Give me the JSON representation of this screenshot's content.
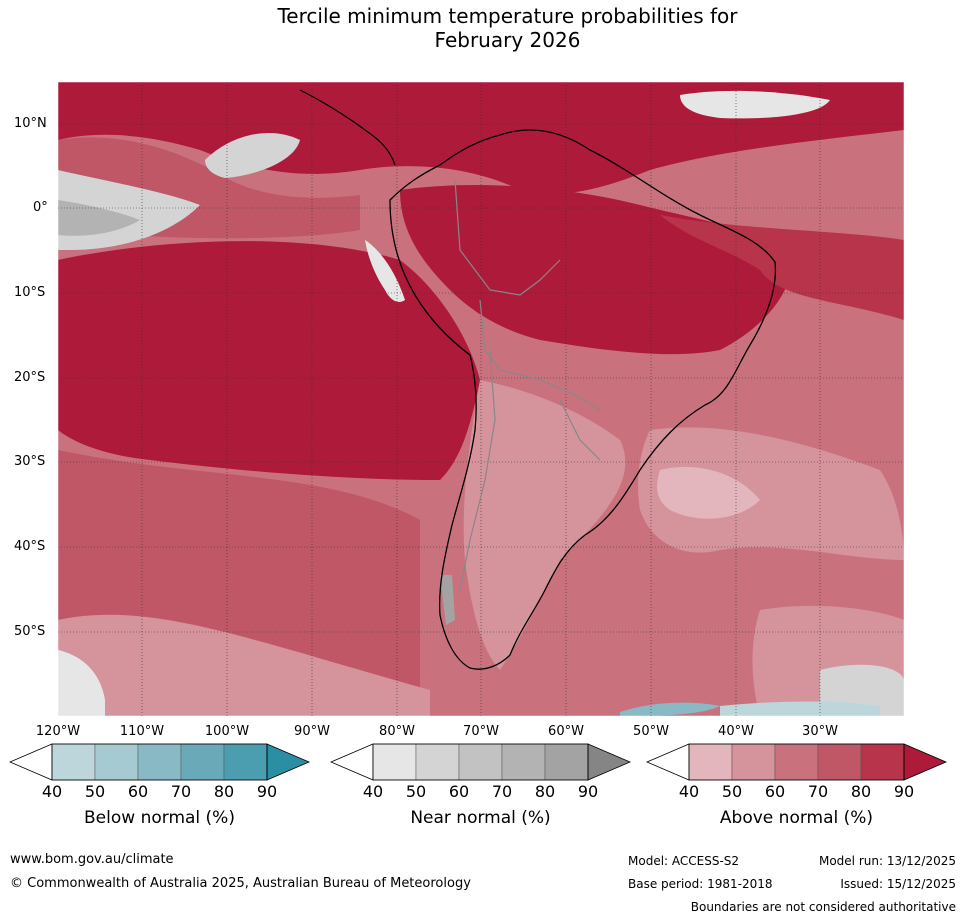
{
  "title_line1": "Tercile minimum temperature probabilities for",
  "title_line2": "February 2026",
  "lat_labels": [
    "10°N",
    "0°",
    "10°S",
    "20°S",
    "30°S",
    "40°S",
    "50°S"
  ],
  "lon_labels": [
    "120°W",
    "110°W",
    "100°W",
    "90°W",
    "80°W",
    "70°W",
    "60°W",
    "50°W",
    "40°W",
    "30°W"
  ],
  "colorbars": [
    {
      "title": "Below normal (%)",
      "ticks": [
        "40",
        "50",
        "60",
        "70",
        "80",
        "90"
      ],
      "colors": [
        "#ffffff",
        "#bdd6dc",
        "#a6cad2",
        "#89b9c5",
        "#6aaab8",
        "#4a9eb0",
        "#2b8fa4"
      ]
    },
    {
      "title": "Near normal (%)",
      "ticks": [
        "40",
        "50",
        "60",
        "70",
        "80",
        "90"
      ],
      "colors": [
        "#ffffff",
        "#e6e6e6",
        "#d4d4d4",
        "#c2c2c2",
        "#b3b3b3",
        "#a3a3a3",
        "#858585"
      ]
    },
    {
      "title": "Above normal (%)",
      "ticks": [
        "40",
        "50",
        "60",
        "70",
        "80",
        "90"
      ],
      "colors": [
        "#ffffff",
        "#e2b6bc",
        "#d5939c",
        "#c9727e",
        "#c05766",
        "#b8344a",
        "#ae1a3a"
      ]
    }
  ],
  "footer": {
    "url": "www.bom.gov.au/climate",
    "copyright": "© Commonwealth of Australia 2025, Australian Bureau of Meteorology",
    "model": "Model: ACCESS-S2",
    "model_run": "Model run: 13/12/2025",
    "base_period": "Base period: 1981-2018",
    "issued": "Issued: 15/12/2025",
    "disclaimer": "Boundaries are not considered authoritative"
  }
}
